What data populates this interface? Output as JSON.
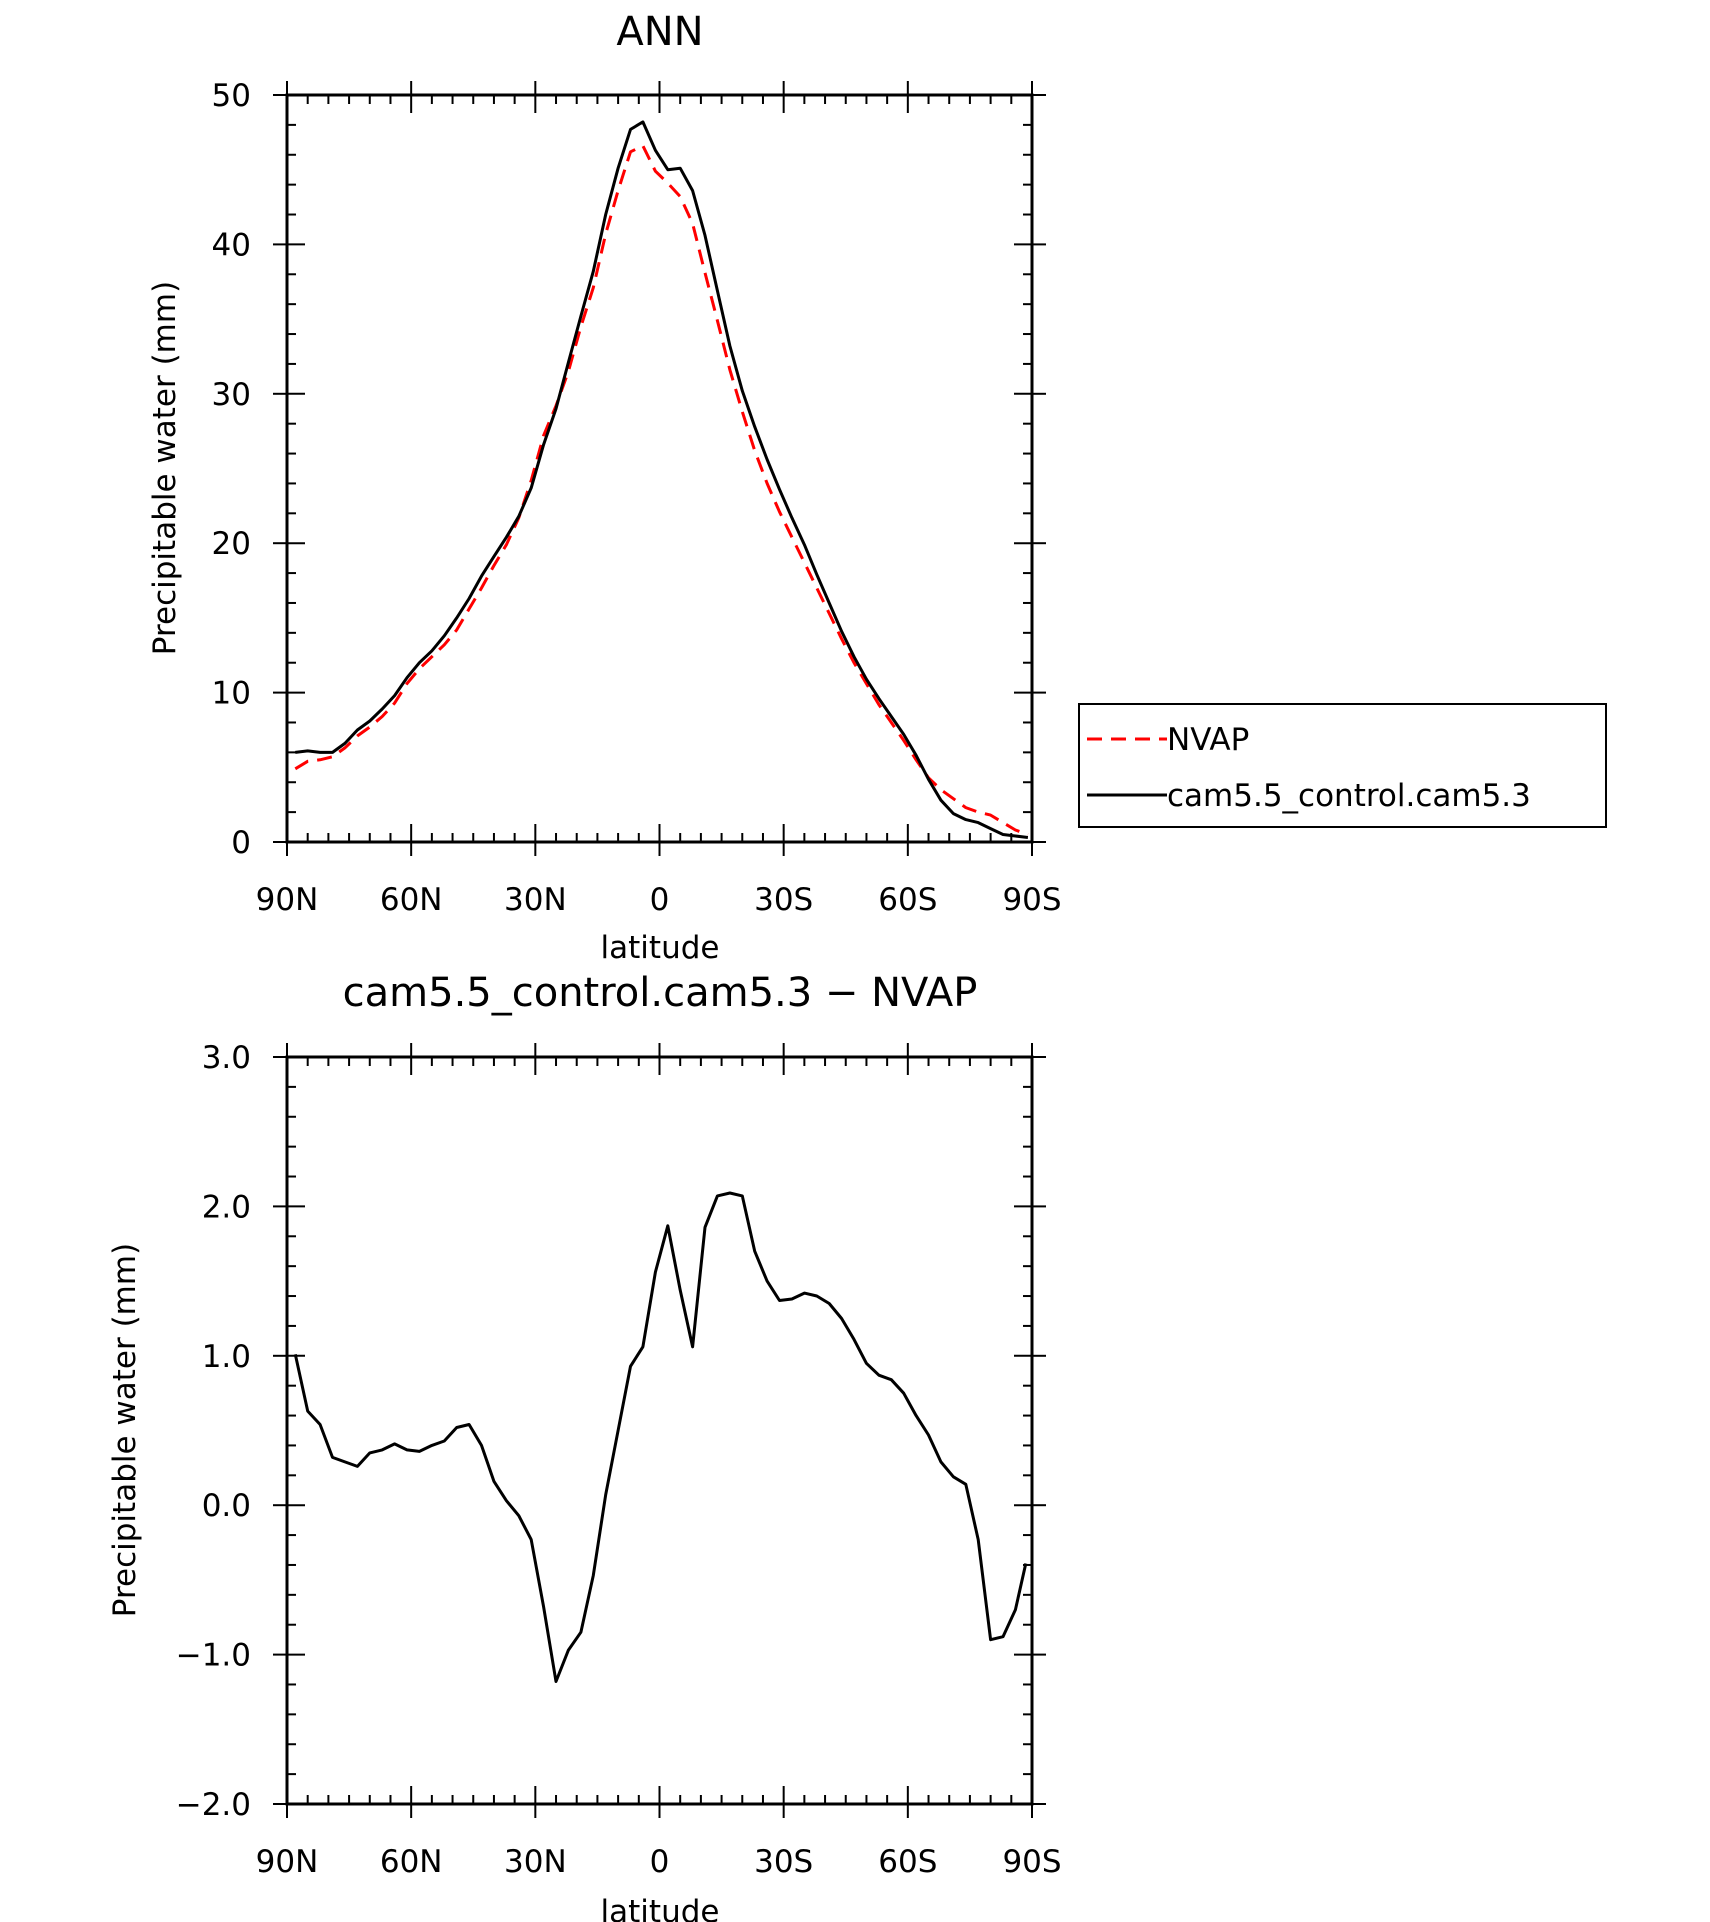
{
  "chart_data": [
    {
      "type": "line",
      "title": "ANN",
      "xlabel": "latitude",
      "ylabel": "Precipitable water (mm)",
      "xlim": [
        90,
        -90
      ],
      "ylim": [
        0,
        50
      ],
      "x_ticks": [
        90,
        60,
        30,
        0,
        -30,
        -60,
        -90
      ],
      "x_tick_labels": [
        "90N",
        "60N",
        "30N",
        "0",
        "30S",
        "60S",
        "90S"
      ],
      "y_ticks": [
        0,
        10,
        20,
        30,
        40,
        50
      ],
      "y_tick_labels": [
        "0",
        "10",
        "20",
        "30",
        "40",
        "50"
      ],
      "legend_position": "right",
      "series": [
        {
          "name": "NVAP",
          "color": "#ff0000",
          "style": "dashed",
          "x": [
            88,
            85,
            82,
            79,
            76,
            73,
            70,
            67,
            64,
            61,
            58,
            55,
            52,
            49,
            46,
            43,
            40,
            37,
            34,
            31,
            28,
            25,
            22,
            19,
            16,
            13,
            10,
            7,
            4,
            1,
            -2,
            -5,
            -8,
            -11,
            -14,
            -17,
            -20,
            -23,
            -26,
            -29,
            -32,
            -35,
            -38,
            -41,
            -44,
            -47,
            -50,
            -53,
            -56,
            -59,
            -62,
            -65,
            -68,
            -71,
            -74,
            -77,
            -80,
            -83,
            -86,
            -89
          ],
          "y": [
            4.9,
            5.4,
            5.5,
            5.7,
            6.3,
            7.1,
            7.7,
            8.4,
            9.3,
            10.6,
            11.6,
            12.4,
            13.2,
            14.2,
            15.6,
            17.0,
            18.5,
            19.9,
            21.7,
            24.2,
            27.2,
            29.2,
            31.5,
            34.5,
            37.1,
            40.7,
            43.6,
            46.2,
            46.6,
            44.9,
            44.1,
            43.2,
            41.4,
            38.1,
            34.9,
            31.6,
            28.8,
            26.2,
            24.0,
            22.1,
            20.4,
            18.7,
            17.0,
            15.3,
            13.6,
            12.0,
            10.6,
            9.2,
            8.0,
            6.8,
            5.5,
            4.3,
            3.5,
            2.9,
            2.3,
            2.0,
            1.8,
            1.3,
            0.8,
            0.5
          ],
          "values_note": ""
        },
        {
          "name": "cam5.5_control.cam5.3",
          "color": "#000000",
          "style": "solid",
          "x": [
            88,
            85,
            82,
            79,
            76,
            73,
            70,
            67,
            64,
            61,
            58,
            55,
            52,
            49,
            46,
            43,
            40,
            37,
            34,
            31,
            28,
            25,
            22,
            19,
            16,
            13,
            10,
            7,
            4,
            1,
            -2,
            -5,
            -8,
            -11,
            -14,
            -17,
            -20,
            -23,
            -26,
            -29,
            -32,
            -35,
            -38,
            -41,
            -44,
            -47,
            -50,
            -53,
            -56,
            -59,
            -62,
            -65,
            -68,
            -71,
            -74,
            -77,
            -80,
            -83,
            -86,
            -89
          ],
          "y": [
            6.0,
            6.1,
            6.0,
            6.0,
            6.6,
            7.5,
            8.1,
            8.9,
            9.8,
            11.0,
            12.0,
            12.8,
            13.8,
            15.0,
            16.3,
            17.8,
            19.1,
            20.4,
            21.8,
            23.7,
            26.6,
            29.0,
            32.1,
            35.2,
            38.2,
            42.0,
            45.1,
            47.7,
            48.2,
            46.3,
            45.0,
            45.1,
            43.6,
            40.6,
            36.9,
            33.2,
            30.2,
            27.8,
            25.6,
            23.6,
            21.7,
            19.9,
            17.9,
            16.0,
            14.1,
            12.4,
            10.9,
            9.6,
            8.4,
            7.2,
            5.8,
            4.2,
            2.8,
            1.9,
            1.5,
            1.3,
            0.9,
            0.5,
            0.4,
            0.3
          ]
        }
      ]
    },
    {
      "type": "line",
      "title": "cam5.5_control.cam5.3 − NVAP",
      "xlabel": "latitude",
      "ylabel": "Precipitable water (mm)",
      "xlim": [
        90,
        -90
      ],
      "ylim": [
        -2.0,
        3.0
      ],
      "x_ticks": [
        90,
        60,
        30,
        0,
        -30,
        -60,
        -90
      ],
      "x_tick_labels": [
        "90N",
        "60N",
        "30N",
        "0",
        "30S",
        "60S",
        "90S"
      ],
      "y_ticks": [
        -2.0,
        -1.0,
        0.0,
        1.0,
        2.0,
        3.0
      ],
      "y_tick_labels": [
        "−2.0",
        "−1.0",
        "0.0",
        "1.0",
        "2.0",
        "3.0"
      ],
      "series": [
        {
          "color": "#000000",
          "style": "solid",
          "x": [
            88,
            85,
            82,
            79,
            76,
            73,
            70,
            67,
            64,
            61,
            58,
            55,
            52,
            49,
            46,
            43,
            40,
            37,
            34,
            31,
            28,
            25,
            22,
            19,
            16,
            13,
            10,
            7,
            4,
            1,
            -2,
            -5,
            -8,
            -11,
            -14,
            -17,
            -20,
            -23,
            -26,
            -29,
            -32,
            -35,
            -38,
            -41,
            -44,
            -47,
            -50,
            -53,
            -56,
            -59,
            -62,
            -65,
            -68,
            -71,
            -74,
            -77,
            -80,
            -83,
            -86,
            -88.5
          ],
          "y": [
            1.01,
            0.63,
            0.54,
            0.32,
            0.29,
            0.26,
            0.35,
            0.37,
            0.41,
            0.37,
            0.36,
            0.4,
            0.43,
            0.52,
            0.54,
            0.4,
            0.16,
            0.03,
            -0.07,
            -0.23,
            -0.68,
            -1.18,
            -0.97,
            -0.85,
            -0.47,
            0.07,
            0.5,
            0.93,
            1.06,
            1.56,
            1.87,
            1.44,
            1.06,
            1.86,
            2.07,
            2.09,
            2.07,
            1.7,
            1.5,
            1.37,
            1.38,
            1.42,
            1.4,
            1.35,
            1.25,
            1.11,
            0.95,
            0.87,
            0.84,
            0.75,
            0.6,
            0.47,
            0.29,
            0.19,
            0.14,
            -0.23,
            -0.9,
            -0.88,
            -0.7,
            -0.39
          ]
        }
      ]
    }
  ]
}
